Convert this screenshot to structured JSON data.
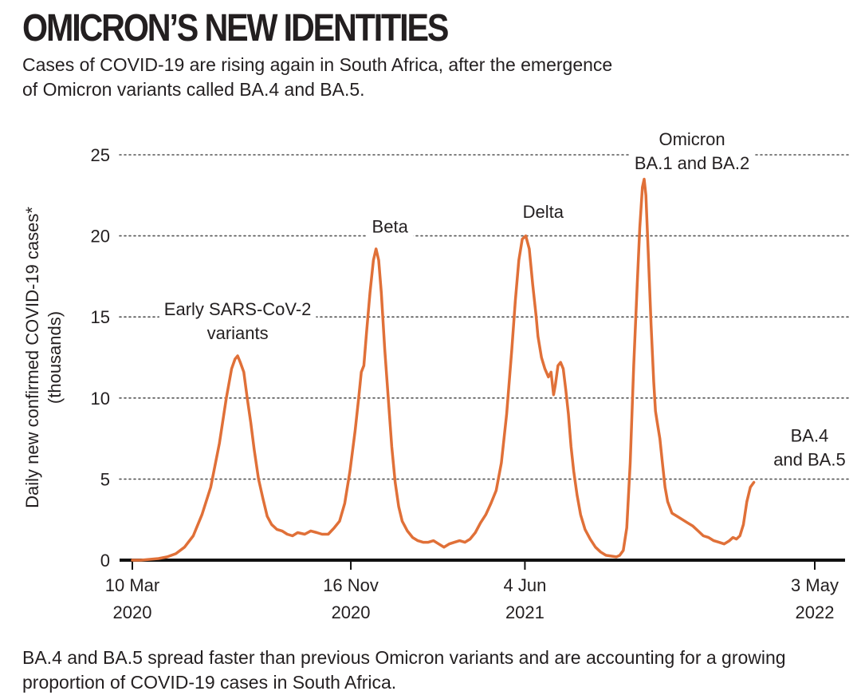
{
  "header": {
    "title": "OMICRON’S NEW IDENTITIES",
    "subtitle": "Cases of COVID-19 are rising again in South Africa, after the emergence of Omicron variants called BA.4 and BA.5."
  },
  "footnote": "BA.4 and BA.5 spread faster than previous Omicron variants and are accounting for a growing proportion of COVID-19 cases in South Africa.",
  "chart_data": {
    "type": "line",
    "title": "",
    "xlabel": "",
    "ylabel": "Daily new confirmed COVID-19 cases* (thousands)",
    "ylabel_lines": [
      "Daily new confirmed COVID-19 cases*",
      "(thousands)"
    ],
    "ylim": [
      0,
      25
    ],
    "yticks": [
      0,
      5,
      10,
      15,
      20,
      25
    ],
    "grid": "horizontal dotted",
    "line_color": "#e07038",
    "xticks": [
      {
        "day": 0,
        "label": [
          "10 Mar",
          "2020"
        ]
      },
      {
        "day": 251,
        "label": [
          "16 Nov",
          "2020"
        ]
      },
      {
        "day": 451,
        "label": [
          "4 Jun",
          "2021"
        ]
      },
      {
        "day": 784,
        "label": [
          "3 May",
          "2022"
        ]
      }
    ],
    "annotations": [
      {
        "text": [
          "Early SARS-CoV-2",
          "variants"
        ],
        "day": 121,
        "y": 15.1
      },
      {
        "text": [
          "Beta"
        ],
        "day": 296,
        "y": 20.2
      },
      {
        "text": [
          "Delta"
        ],
        "day": 472,
        "y": 21.1
      },
      {
        "text": [
          "Omicron",
          "BA.1 and BA.2"
        ],
        "day": 643,
        "y": 25.6
      },
      {
        "text": [
          "BA.4",
          "and BA.5"
        ],
        "day": 778,
        "y": 7.3
      }
    ],
    "series": [
      {
        "values": [
          [
            0,
            0
          ],
          [
            10,
            0
          ],
          [
            20,
            0.05
          ],
          [
            30,
            0.1
          ],
          [
            40,
            0.2
          ],
          [
            50,
            0.4
          ],
          [
            60,
            0.8
          ],
          [
            70,
            1.5
          ],
          [
            80,
            2.8
          ],
          [
            90,
            4.5
          ],
          [
            100,
            7.2
          ],
          [
            108,
            10
          ],
          [
            114,
            11.8
          ],
          [
            118,
            12.4
          ],
          [
            121,
            12.6
          ],
          [
            124,
            12.2
          ],
          [
            128,
            11.6
          ],
          [
            132,
            10
          ],
          [
            136,
            8.5
          ],
          [
            140,
            6.8
          ],
          [
            145,
            5
          ],
          [
            150,
            3.8
          ],
          [
            155,
            2.7
          ],
          [
            160,
            2.2
          ],
          [
            166,
            1.9
          ],
          [
            172,
            1.8
          ],
          [
            178,
            1.6
          ],
          [
            184,
            1.5
          ],
          [
            190,
            1.7
          ],
          [
            198,
            1.6
          ],
          [
            205,
            1.8
          ],
          [
            212,
            1.7
          ],
          [
            218,
            1.6
          ],
          [
            225,
            1.6
          ],
          [
            232,
            2
          ],
          [
            238,
            2.4
          ],
          [
            244,
            3.5
          ],
          [
            250,
            5.5
          ],
          [
            256,
            8
          ],
          [
            260,
            10
          ],
          [
            263,
            11.6
          ],
          [
            266,
            12
          ],
          [
            269,
            14
          ],
          [
            273,
            16.5
          ],
          [
            277,
            18.5
          ],
          [
            280,
            19.2
          ],
          [
            283,
            18.5
          ],
          [
            286,
            16.5
          ],
          [
            290,
            13
          ],
          [
            294,
            10
          ],
          [
            298,
            7
          ],
          [
            302,
            4.8
          ],
          [
            306,
            3.3
          ],
          [
            310,
            2.4
          ],
          [
            316,
            1.8
          ],
          [
            322,
            1.4
          ],
          [
            328,
            1.2
          ],
          [
            334,
            1.1
          ],
          [
            340,
            1.1
          ],
          [
            346,
            1.2
          ],
          [
            352,
            1
          ],
          [
            358,
            0.8
          ],
          [
            364,
            1
          ],
          [
            370,
            1.1
          ],
          [
            376,
            1.2
          ],
          [
            382,
            1.1
          ],
          [
            388,
            1.3
          ],
          [
            394,
            1.7
          ],
          [
            400,
            2.3
          ],
          [
            406,
            2.8
          ],
          [
            412,
            3.5
          ],
          [
            418,
            4.3
          ],
          [
            424,
            6
          ],
          [
            430,
            9
          ],
          [
            436,
            13
          ],
          [
            440,
            16
          ],
          [
            444,
            18.5
          ],
          [
            448,
            19.8
          ],
          [
            452,
            20
          ],
          [
            456,
            19.2
          ],
          [
            460,
            17
          ],
          [
            464,
            15
          ],
          [
            466,
            13.8
          ],
          [
            470,
            12.5
          ],
          [
            474,
            11.8
          ],
          [
            478,
            11.3
          ],
          [
            481,
            11.6
          ],
          [
            484,
            10.2
          ],
          [
            486,
            10.8
          ],
          [
            489,
            12
          ],
          [
            492,
            12.2
          ],
          [
            495,
            11.8
          ],
          [
            498,
            10.5
          ],
          [
            501,
            9
          ],
          [
            504,
            7
          ],
          [
            507,
            5.5
          ],
          [
            511,
            4
          ],
          [
            515,
            2.8
          ],
          [
            520,
            1.9
          ],
          [
            526,
            1.3
          ],
          [
            532,
            0.8
          ],
          [
            538,
            0.5
          ],
          [
            544,
            0.3
          ],
          [
            550,
            0.25
          ],
          [
            556,
            0.2
          ],
          [
            560,
            0.3
          ],
          [
            564,
            0.6
          ],
          [
            568,
            2
          ],
          [
            572,
            6
          ],
          [
            576,
            12
          ],
          [
            580,
            17
          ],
          [
            583,
            20.5
          ],
          [
            586,
            23
          ],
          [
            588,
            23.5
          ],
          [
            590,
            22.5
          ],
          [
            593,
            18.5
          ],
          [
            596,
            14.5
          ],
          [
            599,
            11
          ],
          [
            601,
            9.2
          ],
          [
            603,
            8.5
          ],
          [
            606,
            7.5
          ],
          [
            609,
            6
          ],
          [
            612,
            4.5
          ],
          [
            615,
            3.6
          ],
          [
            620,
            2.9
          ],
          [
            626,
            2.7
          ],
          [
            632,
            2.5
          ],
          [
            638,
            2.3
          ],
          [
            644,
            2.1
          ],
          [
            650,
            1.8
          ],
          [
            656,
            1.5
          ],
          [
            662,
            1.4
          ],
          [
            668,
            1.2
          ],
          [
            674,
            1.1
          ],
          [
            680,
            1
          ],
          [
            686,
            1.2
          ],
          [
            690,
            1.4
          ],
          [
            694,
            1.3
          ],
          [
            698,
            1.5
          ],
          [
            702,
            2.2
          ],
          [
            706,
            3.6
          ],
          [
            710,
            4.5
          ],
          [
            714,
            4.8
          ]
        ]
      }
    ]
  }
}
